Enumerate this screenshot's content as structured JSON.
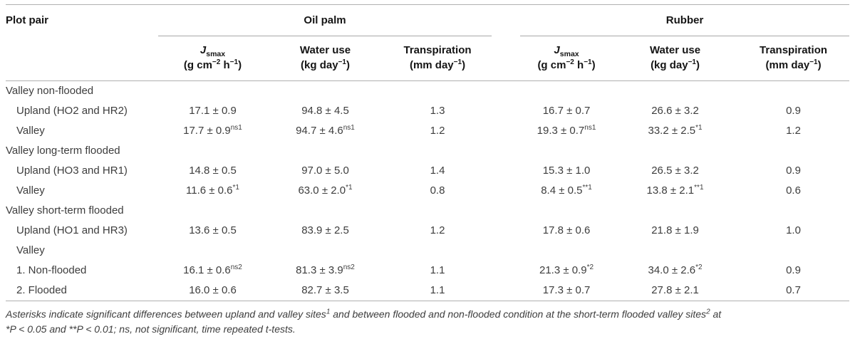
{
  "colors": {
    "background": "#ffffff",
    "header_text": "#151515",
    "body_text": "#3d3d3d",
    "rule": "#b0b0b0"
  },
  "table": {
    "corner_header": "Plot pair",
    "groups": [
      {
        "label": "Oil palm",
        "columns": [
          {
            "title_parts": [
              {
                "t": "J",
                "italic": true
              },
              {
                "t": "smax",
                "sub": true
              }
            ],
            "unit_parts": [
              {
                "t": "(g cm"
              },
              {
                "t": "−2",
                "sup": true
              },
              {
                "t": " h"
              },
              {
                "t": "−1",
                "sup": true
              },
              {
                "t": ")"
              }
            ]
          },
          {
            "title_parts": [
              {
                "t": "Water use"
              }
            ],
            "unit_parts": [
              {
                "t": "(kg day"
              },
              {
                "t": "−1",
                "sup": true
              },
              {
                "t": ")"
              }
            ]
          },
          {
            "title_parts": [
              {
                "t": "Transpiration"
              }
            ],
            "unit_parts": [
              {
                "t": "(mm day"
              },
              {
                "t": "−1",
                "sup": true
              },
              {
                "t": ")"
              }
            ]
          }
        ]
      },
      {
        "label": "Rubber",
        "columns": [
          {
            "title_parts": [
              {
                "t": "J",
                "italic": true
              },
              {
                "t": "smax",
                "sub": true
              }
            ],
            "unit_parts": [
              {
                "t": "(g cm"
              },
              {
                "t": "−2",
                "sup": true
              },
              {
                "t": " h"
              },
              {
                "t": "−1",
                "sup": true
              },
              {
                "t": ")"
              }
            ]
          },
          {
            "title_parts": [
              {
                "t": "Water use"
              }
            ],
            "unit_parts": [
              {
                "t": "(kg day"
              },
              {
                "t": "−1",
                "sup": true
              },
              {
                "t": ")"
              }
            ]
          },
          {
            "title_parts": [
              {
                "t": "Transpiration"
              }
            ],
            "unit_parts": [
              {
                "t": "(mm day"
              },
              {
                "t": "−1",
                "sup": true
              },
              {
                "t": ")"
              }
            ]
          }
        ]
      }
    ],
    "rows": [
      {
        "type": "group",
        "label": "Valley non-flooded"
      },
      {
        "type": "data",
        "indent": 1,
        "label": "Upland (HO2 and HR2)",
        "cells": [
          {
            "v": "17.1 ± 0.9"
          },
          {
            "v": "94.8 ± 4.5"
          },
          {
            "v": "1.3"
          },
          {
            "v": "16.7 ± 0.7"
          },
          {
            "v": "26.6 ± 3.2"
          },
          {
            "v": "0.9"
          }
        ]
      },
      {
        "type": "data",
        "indent": 1,
        "label": "Valley",
        "cells": [
          {
            "v": "17.7 ± 0.9",
            "sup": "ns1"
          },
          {
            "v": "94.7 ± 4.6",
            "sup": "ns1"
          },
          {
            "v": "1.2"
          },
          {
            "v": "19.3 ± 0.7",
            "sup": "ns1"
          },
          {
            "v": "33.2 ± 2.5",
            "sup": "*1"
          },
          {
            "v": "1.2"
          }
        ]
      },
      {
        "type": "group",
        "label": "Valley long-term flooded"
      },
      {
        "type": "data",
        "indent": 1,
        "label": "Upland (HO3 and HR1)",
        "cells": [
          {
            "v": "14.8 ± 0.5"
          },
          {
            "v": "97.0 ± 5.0"
          },
          {
            "v": "1.4"
          },
          {
            "v": "15.3 ± 1.0"
          },
          {
            "v": "26.5 ± 3.2"
          },
          {
            "v": "0.9"
          }
        ]
      },
      {
        "type": "data",
        "indent": 1,
        "label": "Valley",
        "cells": [
          {
            "v": "11.6 ± 0.6",
            "sup": "*1"
          },
          {
            "v": "63.0 ± 2.0",
            "sup": "*1"
          },
          {
            "v": "0.8"
          },
          {
            "v": "8.4 ± 0.5",
            "sup": "**1"
          },
          {
            "v": "13.8 ± 2.1",
            "sup": "**1"
          },
          {
            "v": "0.6"
          }
        ]
      },
      {
        "type": "group",
        "label": "Valley short-term flooded"
      },
      {
        "type": "data",
        "indent": 1,
        "label": "Upland (HO1 and HR3)",
        "cells": [
          {
            "v": "13.6 ± 0.5"
          },
          {
            "v": "83.9 ± 2.5"
          },
          {
            "v": "1.2"
          },
          {
            "v": "17.8 ± 0.6"
          },
          {
            "v": "21.8 ± 1.9"
          },
          {
            "v": "1.0"
          }
        ]
      },
      {
        "type": "data",
        "indent": 1,
        "label": "Valley",
        "cells": []
      },
      {
        "type": "data",
        "indent": 1,
        "label": "1. Non-flooded",
        "cells": [
          {
            "v": "16.1 ± 0.6",
            "sup": "ns2"
          },
          {
            "v": "81.3 ± 3.9",
            "sup": "ns2"
          },
          {
            "v": "1.1"
          },
          {
            "v": "21.3 ± 0.9",
            "sup": "*2"
          },
          {
            "v": "34.0 ± 2.6",
            "sup": "*2"
          },
          {
            "v": "0.9"
          }
        ]
      },
      {
        "type": "data",
        "indent": 1,
        "label": "2. Flooded",
        "cells": [
          {
            "v": "16.0 ± 0.6"
          },
          {
            "v": "82.7 ± 3.5"
          },
          {
            "v": "1.1"
          },
          {
            "v": "17.3 ± 0.7"
          },
          {
            "v": "27.8 ± 2.1"
          },
          {
            "v": "0.7"
          }
        ]
      }
    ]
  },
  "footnote": {
    "line1_parts": [
      {
        "t": "Asterisks indicate significant differences between upland and valley sites"
      },
      {
        "t": "1",
        "sup": true
      },
      {
        "t": " and between flooded and non-flooded condition at the short-term flooded valley sites"
      },
      {
        "t": "2",
        "sup": true
      },
      {
        "t": " at"
      }
    ],
    "line2": "*P < 0.05 and **P < 0.01; ns, not significant, time repeated t-tests."
  }
}
